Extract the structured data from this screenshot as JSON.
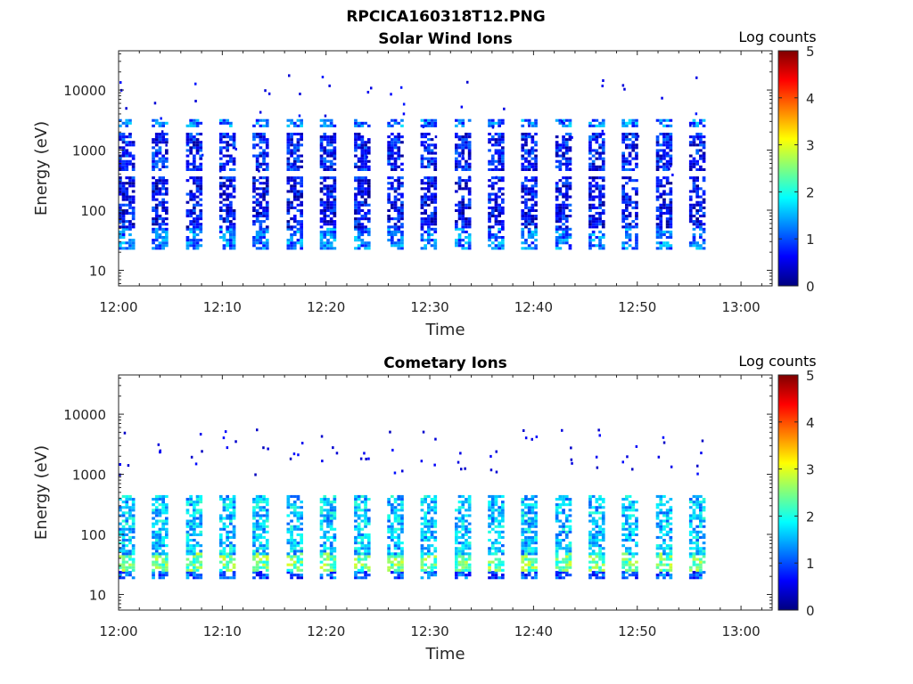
{
  "figure_title": "RPCICA160318T12.PNG",
  "colormap": [
    "#00007f",
    "#0000ff",
    "#007fff",
    "#00ffff",
    "#7fff7f",
    "#ffff00",
    "#ff7f00",
    "#ff0000",
    "#7f0000"
  ],
  "chart_data": [
    {
      "type": "heatmap",
      "title": "Solar Wind Ions",
      "xlabel": "Time",
      "ylabel": "Energy (eV)",
      "xticks": [
        "12:00",
        "12:10",
        "12:20",
        "12:30",
        "12:40",
        "12:50",
        "13:00"
      ],
      "yticks": [
        "10",
        "100",
        "1000",
        "10000"
      ],
      "xlim_minutes": [
        0,
        63
      ],
      "ylim_ev": [
        5.5,
        45000
      ],
      "yscale": "log",
      "colorbar": {
        "label": "Log counts",
        "range": [
          0,
          5
        ],
        "ticks": [
          "0",
          "1",
          "2",
          "3",
          "4",
          "5"
        ]
      },
      "sweep_start_minutes": [
        0.0,
        3.2,
        6.5,
        9.7,
        12.9,
        16.2,
        19.4,
        22.7,
        25.9,
        29.1,
        32.4,
        35.6,
        38.8,
        42.1,
        45.3,
        48.5,
        51.8,
        55.0
      ],
      "bands": [
        {
          "e_min": 22,
          "e_max": 50,
          "level": 1.2
        },
        {
          "e_min": 50,
          "e_max": 350,
          "level": 0.6
        },
        {
          "e_min": 450,
          "e_max": 1800,
          "level": 0.7
        },
        {
          "e_min": 2400,
          "e_max": 3200,
          "level": 1.2
        }
      ],
      "scatter_e_range": [
        300,
        20000
      ],
      "scatter_level": 0.4
    },
    {
      "type": "heatmap",
      "title": "Cometary Ions",
      "xlabel": "Time",
      "ylabel": "Energy (eV)",
      "xticks": [
        "12:00",
        "12:10",
        "12:20",
        "12:30",
        "12:40",
        "12:50",
        "13:00"
      ],
      "yticks": [
        "10",
        "100",
        "1000",
        "10000"
      ],
      "xlim_minutes": [
        0,
        63
      ],
      "ylim_ev": [
        5.5,
        45000
      ],
      "yscale": "log",
      "colorbar": {
        "label": "Log counts",
        "range": [
          0,
          5
        ],
        "ticks": [
          "0",
          "1",
          "2",
          "3",
          "4",
          "5"
        ]
      },
      "sweep_start_minutes": [
        0.0,
        3.2,
        6.5,
        9.7,
        12.9,
        16.2,
        19.4,
        22.7,
        25.9,
        29.1,
        32.4,
        35.6,
        38.8,
        42.1,
        45.3,
        48.5,
        51.8,
        55.0
      ],
      "bands": [
        {
          "e_min": 18,
          "e_max": 24,
          "level": 1.0
        },
        {
          "e_min": 24,
          "e_max": 45,
          "level": 2.4
        },
        {
          "e_min": 45,
          "e_max": 450,
          "level": 1.6
        }
      ],
      "scatter_e_range": [
        1000,
        6000
      ],
      "scatter_level": 0.3
    }
  ]
}
